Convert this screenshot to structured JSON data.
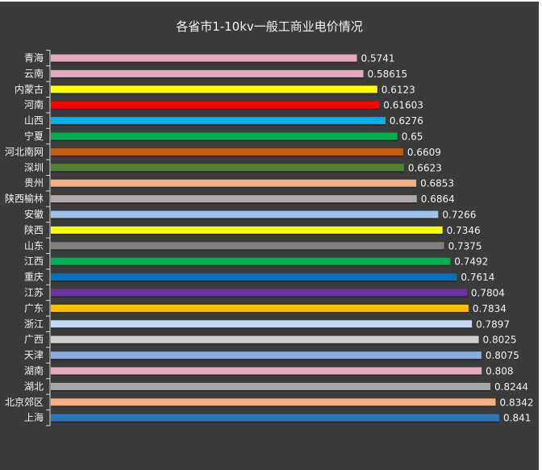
{
  "chart_data": {
    "type": "bar",
    "orientation": "horizontal",
    "title": "各省市1-10kv一般工商业电价情况",
    "xlabel": "",
    "ylabel": "",
    "xlim": [
      0,
      0.841
    ],
    "grid": false,
    "legend": "none",
    "categories": [
      "青海",
      "云南",
      "内蒙古",
      "河南",
      "山西",
      "宁夏",
      "河北南网",
      "深圳",
      "贵州",
      "陕西榆林",
      "安徽",
      "陕西",
      "山东",
      "江西",
      "重庆",
      "江苏",
      "广东",
      "浙江",
      "广西",
      "天津",
      "湖南",
      "湖北",
      "北京郊区",
      "上海"
    ],
    "values": [
      0.5741,
      0.58615,
      0.6123,
      0.61603,
      0.6276,
      0.65,
      0.6609,
      0.6623,
      0.6853,
      0.6864,
      0.7266,
      0.7346,
      0.7375,
      0.7492,
      0.7614,
      0.7804,
      0.7834,
      0.7897,
      0.8025,
      0.8075,
      0.808,
      0.8244,
      0.8342,
      0.841
    ],
    "value_labels": [
      "0.5741",
      "0.58615",
      "0.6123",
      "0.61603",
      "0.6276",
      "0.65",
      "0.6609",
      "0.6623",
      "0.6853",
      "0.6864",
      "0.7266",
      "0.7346",
      "0.7375",
      "0.7492",
      "0.7614",
      "0.7804",
      "0.7834",
      "0.7897",
      "0.8025",
      "0.8075",
      "0.808",
      "0.8244",
      "0.8342",
      "0.841"
    ],
    "colors": [
      "#e4a9bd",
      "#e4a9bd",
      "#ffff00",
      "#ff0000",
      "#00b0f0",
      "#00b050",
      "#c55a11",
      "#548235",
      "#f4b183",
      "#aeaaaa",
      "#9dc3e6",
      "#ffff00",
      "#7f7f7f",
      "#00b050",
      "#0070c0",
      "#7030a0",
      "#ffc000",
      "#c5daf0",
      "#d0d0d0",
      "#8faadc",
      "#e4a9bd",
      "#a6a6a6",
      "#f4b183",
      "#2e75b6"
    ]
  }
}
